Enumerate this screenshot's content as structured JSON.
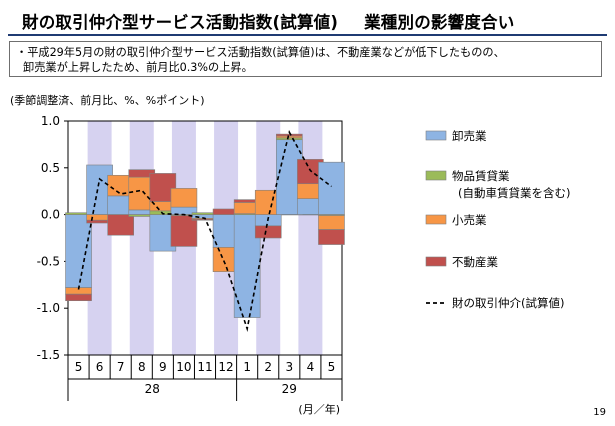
{
  "header": {
    "title": "財の取引仲介型サービス活動指数(試算値)",
    "subtitle": "業種別の影響度合い"
  },
  "summary": {
    "line1": "・平成29年5月の財の取引仲介型サービス活動指数(試算値)は、不動産業などが低下したものの、",
    "line2": "卸売業が上昇したため、前月比0.3%の上昇。"
  },
  "page_number": "19",
  "colors": {
    "wholesale": "#8eb4e3",
    "rental": "#9bbb59",
    "retail": "#f79646",
    "realestate": "#c0504d",
    "stripe": "#d6d2f0",
    "line": "#000000"
  },
  "chart_data": {
    "type": "bar",
    "stacked": true,
    "unit_label": "(季節調整済、前月比、%、%ポイント)",
    "ylim": [
      -1.5,
      1.0
    ],
    "yticks": [
      "1.0",
      "0.5",
      "0.0",
      "-0.5",
      "-1.0",
      "-1.5"
    ],
    "ytick_values": [
      1.0,
      0.5,
      0.0,
      -0.5,
      -1.0,
      -1.5
    ],
    "categories": [
      "5",
      "6",
      "7",
      "8",
      "9",
      "10",
      "11",
      "12",
      "1",
      "2",
      "3",
      "4",
      "5"
    ],
    "year_labels": [
      {
        "label": "28",
        "start": 0,
        "end": 7
      },
      {
        "label": "29",
        "start": 8,
        "end": 12
      }
    ],
    "axis_unit_label": "(月／年)",
    "shaded_months": [
      1,
      3,
      5,
      7,
      9,
      11
    ],
    "series": [
      {
        "key": "wholesale",
        "name": "卸売業",
        "values": [
          -0.78,
          0.53,
          0.2,
          0.05,
          -0.39,
          0.08,
          -0.04,
          -0.35,
          -1.1,
          -0.12,
          0.8,
          0.17,
          0.56
        ]
      },
      {
        "key": "rental",
        "name": "物品賃貸業",
        "name2": "(自動車賃貸業を含む)",
        "values": [
          0.02,
          0.0,
          0.0,
          -0.02,
          0.04,
          -0.01,
          0.02,
          0.0,
          0.01,
          0.0,
          0.02,
          0.0,
          -0.01
        ]
      },
      {
        "key": "retail",
        "name": "小売業",
        "values": [
          -0.07,
          -0.06,
          0.22,
          0.35,
          0.1,
          0.2,
          -0.01,
          -0.26,
          0.12,
          0.26,
          0.02,
          0.16,
          -0.15
        ]
      },
      {
        "key": "realestate",
        "name": "不動産業",
        "values": [
          -0.07,
          -0.03,
          -0.22,
          0.08,
          0.3,
          -0.33,
          -0.01,
          0.06,
          0.03,
          -0.13,
          0.02,
          0.26,
          -0.16
        ]
      }
    ],
    "line": {
      "name": "財の取引仲介(試算値)",
      "values": [
        -0.8,
        0.38,
        0.22,
        0.26,
        0.01,
        0.0,
        -0.04,
        -0.55,
        -1.22,
        -0.04,
        0.88,
        0.47,
        0.3
      ]
    }
  }
}
